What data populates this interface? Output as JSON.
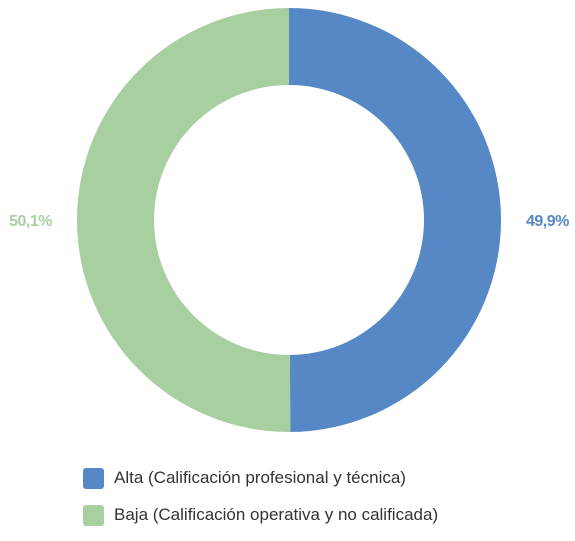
{
  "chart_data": {
    "type": "pie",
    "donut": true,
    "categories": [
      "Alta (Calificación profesional y técnica)",
      "Baja (Calificación operativa y no calificada)"
    ],
    "values": [
      49.9,
      50.1
    ],
    "value_labels": [
      "49,9%",
      "50,1%"
    ],
    "colors": [
      "#5588c4",
      "#a8cfa0"
    ],
    "legend_position": "bottom",
    "title": ""
  }
}
